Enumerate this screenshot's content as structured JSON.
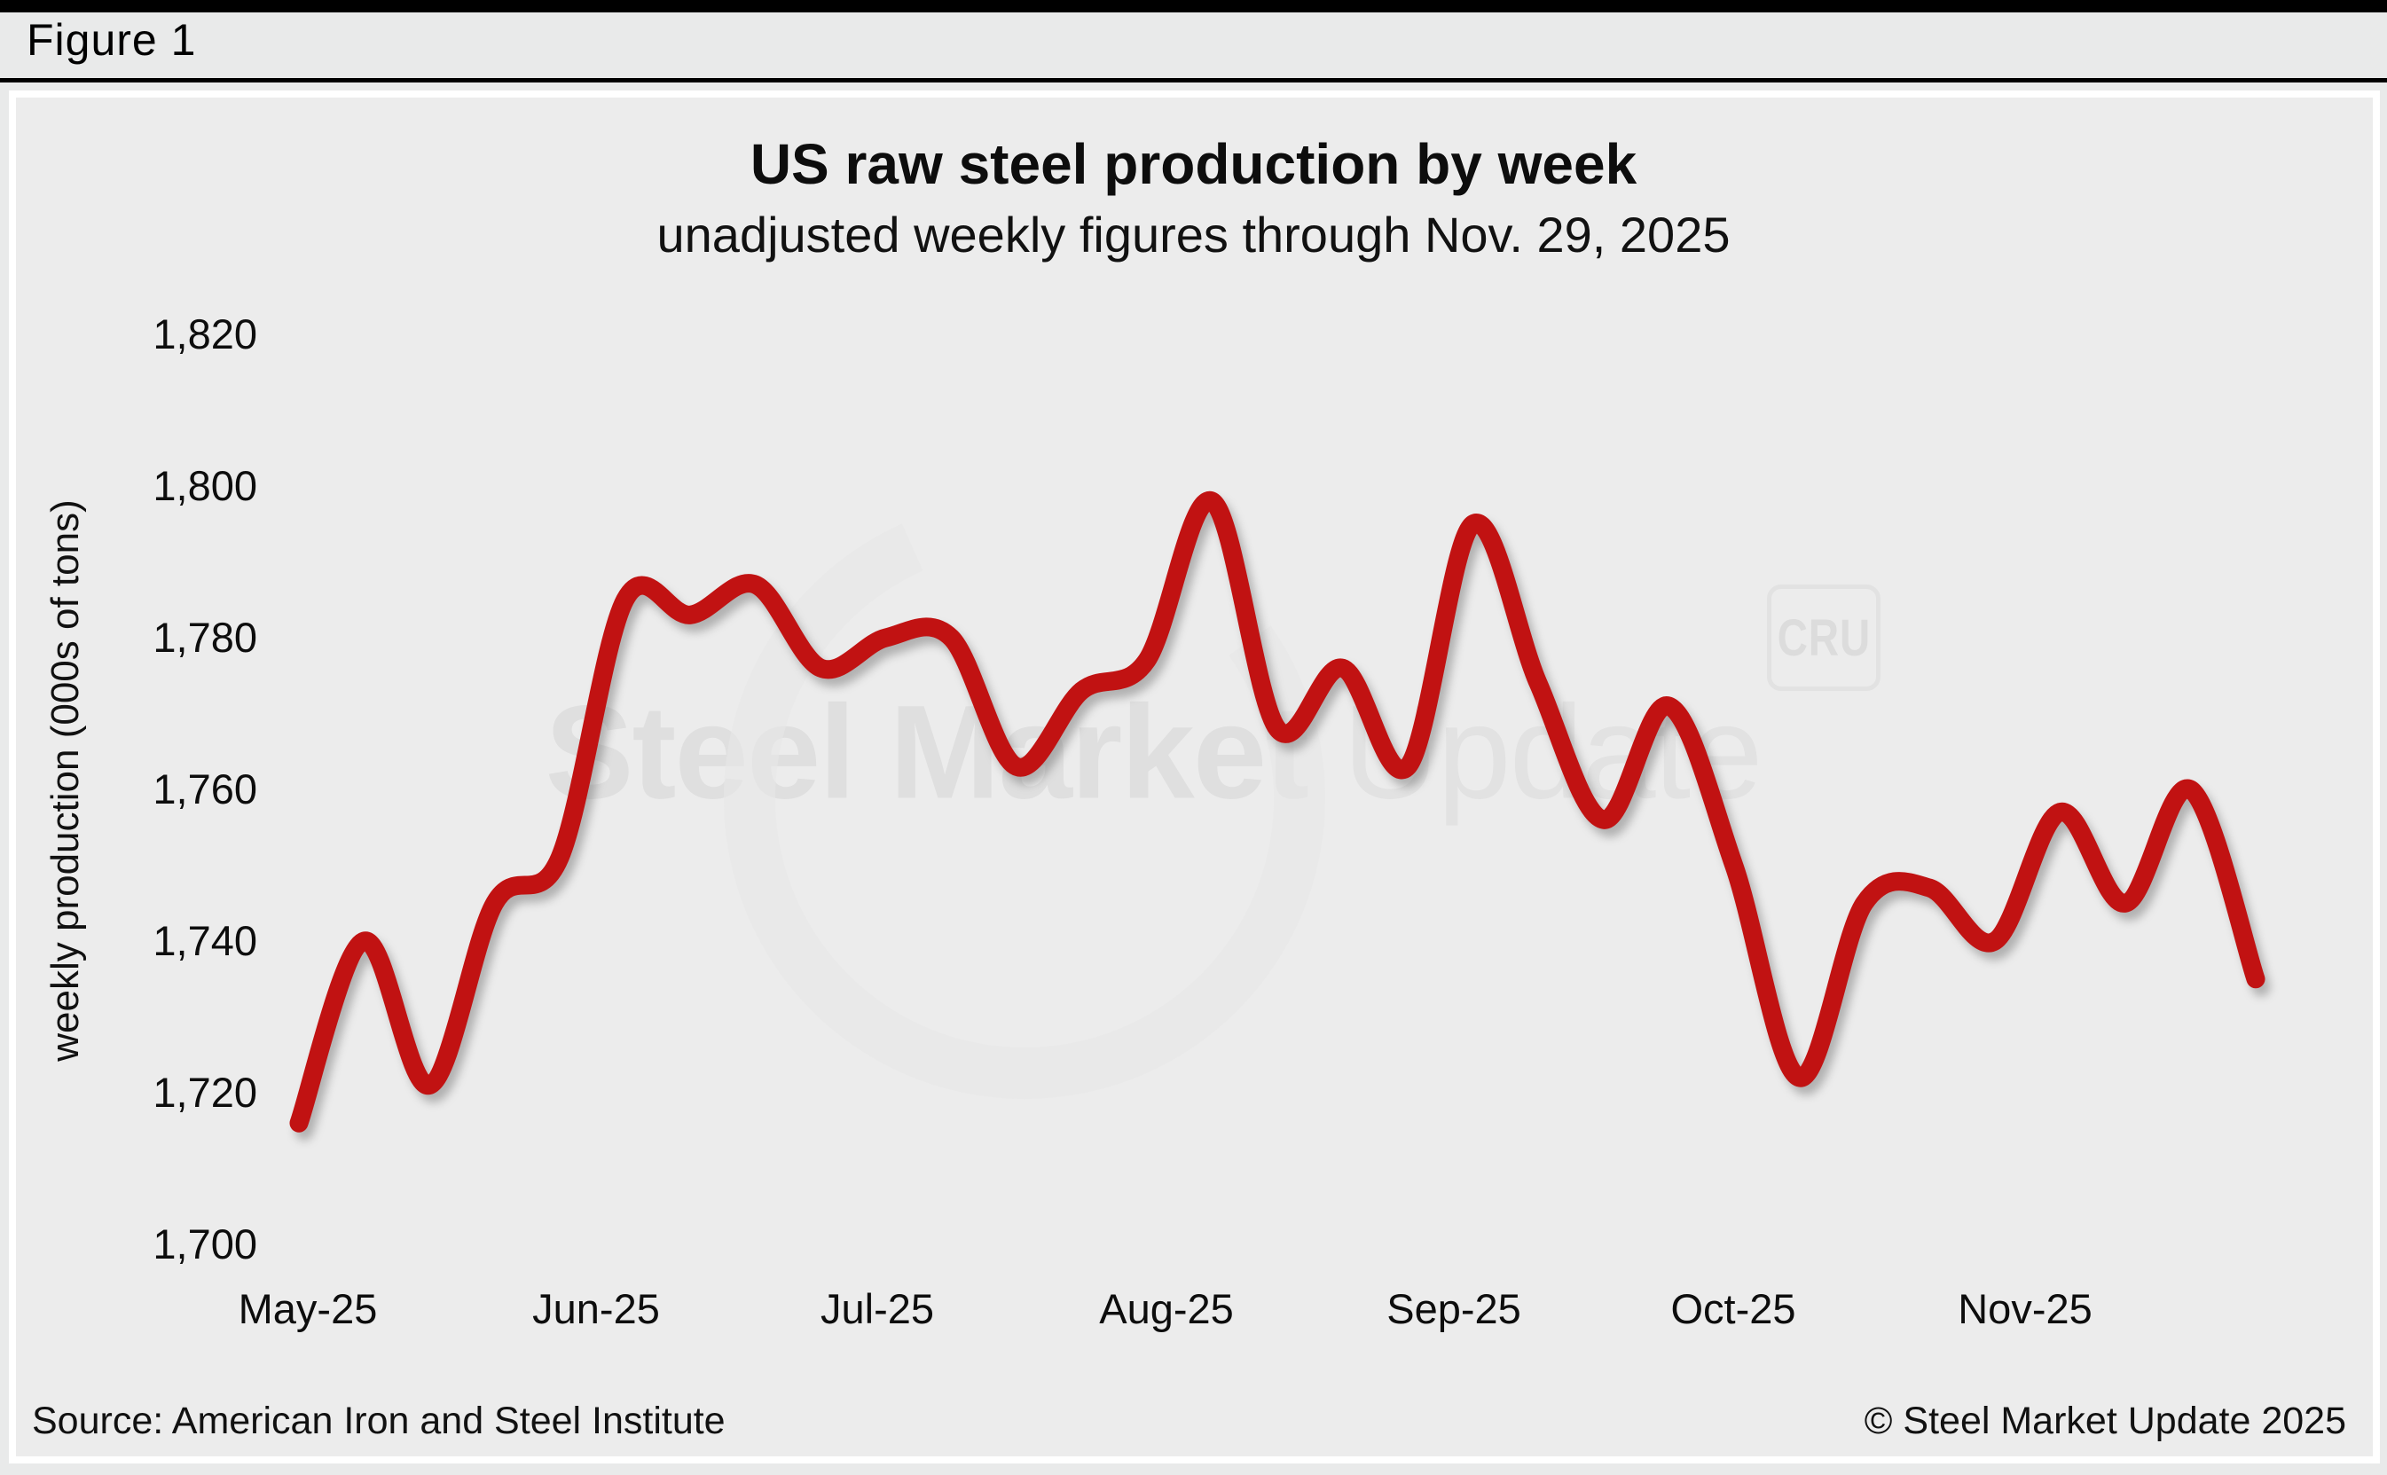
{
  "figure_label": "Figure 1",
  "title": "US raw steel production by week",
  "subtitle": "unadjusted weekly figures through Nov. 29, 2025",
  "y_axis_title": "weekly production (000s of tons)",
  "watermark": {
    "bold_part": "Steel Market",
    "light_part": " Update",
    "badge": "CRU"
  },
  "footer": {
    "source": "Source: American Iron and Steel Institute",
    "copyright": "© Steel Market Update 2025"
  },
  "colors": {
    "line": "#c11212",
    "card_background": "#ececec",
    "page_background": "#e9eaea",
    "top_bar": "#000000",
    "watermark": "#dfdfdf"
  },
  "chart_data": {
    "type": "line",
    "title": "US raw steel production by week",
    "subtitle": "unadjusted weekly figures through Nov. 29, 2025",
    "xlabel": "",
    "ylabel": "weekly production (000s of tons)",
    "ylim": [
      1700,
      1820
    ],
    "y_ticks": [
      1820,
      1800,
      1780,
      1760,
      1740,
      1720,
      1700
    ],
    "y_tick_labels": [
      "1,820",
      "1,800",
      "1,780",
      "1,760",
      "1,740",
      "1,720",
      "1,700"
    ],
    "x_tick_labels": [
      "May-25",
      "Jun-25",
      "Jul-25",
      "Aug-25",
      "Sep-25",
      "Oct-25",
      "Nov-25"
    ],
    "grid": false,
    "legend": false,
    "line_color": "#c11212",
    "series": [
      {
        "name": "US weekly raw steel production (000s of tons)",
        "week_ending": [
          "2025-05-03",
          "2025-05-10",
          "2025-05-17",
          "2025-05-24",
          "2025-05-31",
          "2025-06-07",
          "2025-06-14",
          "2025-06-21",
          "2025-06-28",
          "2025-07-05",
          "2025-07-12",
          "2025-07-19",
          "2025-07-26",
          "2025-08-02",
          "2025-08-09",
          "2025-08-16",
          "2025-08-23",
          "2025-08-30",
          "2025-09-06",
          "2025-09-13",
          "2025-09-20",
          "2025-09-27",
          "2025-10-04",
          "2025-10-11",
          "2025-10-18",
          "2025-10-25",
          "2025-11-01",
          "2025-11-08",
          "2025-11-15",
          "2025-11-22",
          "2025-11-29"
        ],
        "values": [
          1716,
          1740,
          1721,
          1745,
          1751,
          1785,
          1783,
          1787,
          1776,
          1780,
          1780,
          1763,
          1773,
          1777,
          1798,
          1768,
          1776,
          1763,
          1795,
          1774,
          1756,
          1771,
          1750,
          1722,
          1745,
          1747,
          1740,
          1757,
          1745,
          1760,
          1735
        ]
      }
    ]
  }
}
